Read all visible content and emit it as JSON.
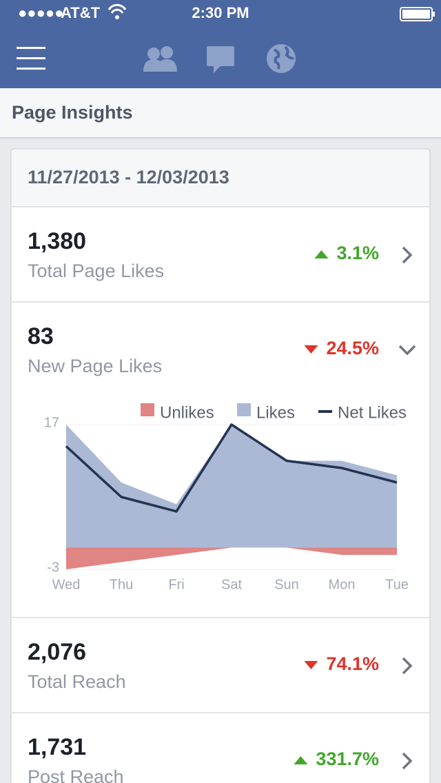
{
  "status_bar": {
    "signal": "●●●●●",
    "carrier": "AT&T",
    "time": "2:30 PM"
  },
  "header": {
    "title": "Page Insights"
  },
  "date_range": "11/27/2013 - 12/03/2013",
  "metrics": [
    {
      "value": "1,380",
      "label": "Total Page Likes",
      "change": "3.1%",
      "trend": "up"
    },
    {
      "value": "83",
      "label": "New Page Likes",
      "change": "24.5%",
      "trend": "down"
    },
    {
      "value": "2,076",
      "label": "Total Reach",
      "change": "74.1%",
      "trend": "down"
    },
    {
      "value": "1,731",
      "label": "Post Reach",
      "change": "331.7%",
      "trend": "up"
    }
  ],
  "chart_data": {
    "type": "area",
    "categories": [
      "Wed",
      "Thu",
      "Fri",
      "Sat",
      "Sun",
      "Mon",
      "Tue"
    ],
    "series": [
      {
        "name": "Unlikes",
        "color": "#e08484",
        "kind": "area",
        "values": [
          -3,
          -2,
          -1,
          0,
          0,
          -1,
          -1
        ]
      },
      {
        "name": "Likes",
        "color": "#abb9d5",
        "kind": "area",
        "values": [
          17,
          9,
          6,
          17,
          12,
          12,
          10
        ]
      },
      {
        "name": "Net Likes",
        "color": "#243352",
        "kind": "line",
        "values": [
          14,
          7,
          5,
          17,
          12,
          11,
          9
        ]
      }
    ],
    "ylim": [
      -3,
      17
    ],
    "yticks": [
      -3,
      17
    ],
    "grid": true
  }
}
